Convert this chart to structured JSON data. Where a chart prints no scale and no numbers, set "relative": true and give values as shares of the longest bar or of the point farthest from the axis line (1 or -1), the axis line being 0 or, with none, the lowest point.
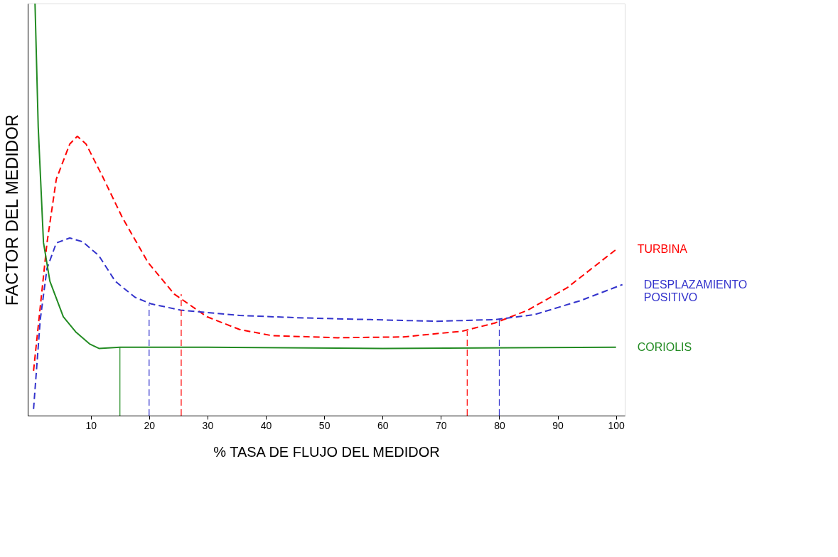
{
  "chart_data": {
    "type": "line",
    "relative": true,
    "xlabel": "% TASA DE FLUJO DEL MEDIDOR",
    "ylabel": "FACTOR DEL MEDIDOR",
    "xlim": [
      -0.8,
      101.5
    ],
    "xticks": [
      10,
      20,
      30,
      40,
      50,
      60,
      70,
      80,
      90,
      100
    ],
    "grid": false,
    "legend": false,
    "marker": "none",
    "series": [
      {
        "name": "TURBINA",
        "color": "#ff0000",
        "line_style": "dashed",
        "x": [
          0.2,
          1.35,
          2.5,
          4.1,
          6.4,
          7.7,
          9.2,
          12,
          15.4,
          19.8,
          24.3,
          29.9,
          35.5,
          41.1,
          52.4,
          63.6,
          73.7,
          79.3,
          84.9,
          91.6,
          100
        ],
        "values": [
          0.109,
          0.264,
          0.419,
          0.574,
          0.659,
          0.678,
          0.659,
          0.581,
          0.481,
          0.372,
          0.295,
          0.24,
          0.209,
          0.194,
          0.189,
          0.191,
          0.205,
          0.225,
          0.256,
          0.31,
          0.403
        ]
      },
      {
        "name": "DESPLAZAMIENTO POSITIVO",
        "color": "#3333cc",
        "line_style": "dashed",
        "x": [
          0.2,
          1.35,
          2.5,
          4.1,
          6.4,
          8.6,
          11.4,
          14.2,
          17.6,
          20.4,
          25.4,
          35.5,
          46.7,
          57.9,
          69.1,
          79.3,
          86,
          93.9,
          101.1
        ],
        "values": [
          0.016,
          0.233,
          0.357,
          0.419,
          0.431,
          0.422,
          0.388,
          0.326,
          0.287,
          0.271,
          0.256,
          0.243,
          0.237,
          0.233,
          0.229,
          0.233,
          0.245,
          0.279,
          0.318
        ]
      },
      {
        "name": "CORIOLIS",
        "color": "#228b22",
        "line_style": "solid",
        "x": [
          0.45,
          1.0,
          1.9,
          3.0,
          5.3,
          7.5,
          9.8,
          11.4,
          15,
          30,
          60,
          100
        ],
        "values": [
          1.0,
          0.7,
          0.42,
          0.326,
          0.24,
          0.202,
          0.174,
          0.163,
          0.166,
          0.166,
          0.163,
          0.166
        ]
      },
      {
        "color": "#228b22",
        "line_style": "solid",
        "x": [
          15,
          15
        ],
        "values": [
          0,
          0.166
        ]
      },
      {
        "color": "#3333cc",
        "line_style": "dashed",
        "x": [
          20,
          20
        ],
        "values": [
          0,
          0.271
        ]
      },
      {
        "color": "#ff0000",
        "line_style": "dashed",
        "x": [
          25.5,
          25.5
        ],
        "values": [
          0,
          0.295
        ]
      },
      {
        "color": "#ff0000",
        "line_style": "dashed",
        "x": [
          74.5,
          74.5
        ],
        "values": [
          0,
          0.205
        ]
      },
      {
        "color": "#3333cc",
        "line_style": "dashed",
        "x": [
          80,
          80
        ],
        "values": [
          0,
          0.233
        ]
      }
    ]
  }
}
